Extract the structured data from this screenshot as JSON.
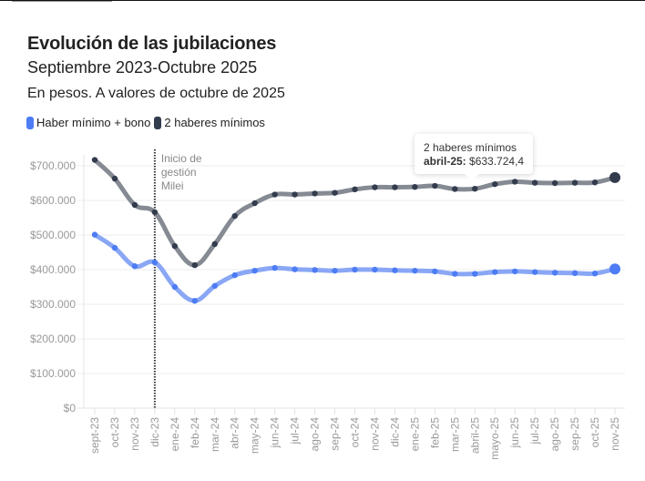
{
  "header": {
    "title": "Evolución de las jubilaciones",
    "subtitle": "Septiembre 2023-Octubre 2025",
    "description": "En pesos. A valores de octubre de 2025"
  },
  "legend": [
    {
      "label": "Haber mínimo + bono",
      "color": "#4d7cf4"
    },
    {
      "label": "2 haberes mínimos",
      "color": "#323c4d"
    }
  ],
  "tooltip": {
    "series": "2 haberes mínimos",
    "label": "abril-25:",
    "value": "$633.724,4"
  },
  "chart_data": {
    "type": "line",
    "title": "Evolución de las jubilaciones",
    "subtitle": "Septiembre 2023-Octubre 2025",
    "ylabel": "En pesos. A valores de octubre de 2025",
    "xlabel": "",
    "ylim": [
      0,
      700000
    ],
    "grid": true,
    "legend_position": "top-left",
    "yticks": [
      0,
      100000,
      200000,
      300000,
      400000,
      500000,
      600000,
      700000
    ],
    "ytick_labels": [
      "$0",
      "$100.000",
      "$200.000",
      "$300.000",
      "$400.000",
      "$500.000",
      "$600.000",
      "$700.000"
    ],
    "categories": [
      "sept-23",
      "oct-23",
      "nov-23",
      "dic-23",
      "ene-24",
      "feb-24",
      "mar-24",
      "abr-24",
      "may-24",
      "jun-24",
      "jul-24",
      "ago-24",
      "sep-24",
      "oct-24",
      "nov-24",
      "dic-24",
      "ene-25",
      "feb-25",
      "mar-25",
      "abril-25",
      "mayo-25",
      "jun-25",
      "jul-25",
      "ago-25",
      "sep-25",
      "oct-25",
      "nov-25"
    ],
    "series": [
      {
        "name": "Haber mínimo + bono",
        "color": "#4d7cf4",
        "values": [
          501000,
          463000,
          410000,
          421000,
          350000,
          310000,
          353000,
          384000,
          397000,
          405000,
          401000,
          399000,
          397000,
          400000,
          400000,
          398000,
          397000,
          395000,
          388000,
          388000,
          393000,
          395000,
          393000,
          391000,
          390000,
          389000,
          402000
        ]
      },
      {
        "name": "2 haberes mínimos",
        "color": "#323c4d",
        "values": [
          717000,
          663000,
          587000,
          566000,
          468000,
          413000,
          474000,
          555000,
          592000,
          617000,
          617000,
          620000,
          622000,
          632000,
          638000,
          638000,
          639000,
          642000,
          633000,
          633724.4,
          647000,
          654000,
          651000,
          650000,
          651000,
          652000,
          666000
        ]
      }
    ],
    "annotations": [
      {
        "category": "dic-23",
        "text_lines": [
          "Inicio de",
          "gestión",
          "Milei"
        ],
        "style": "dotted-vertical-line"
      }
    ]
  }
}
